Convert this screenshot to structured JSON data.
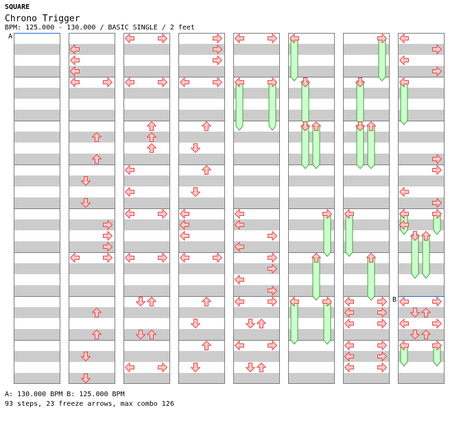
{
  "header": {
    "title": "SQUARE",
    "song": "Chrono Trigger",
    "info": "BPM: 125.000 - 130.000 / BASIC SINGLE / 2 feet"
  },
  "footer": {
    "bpm": "A: 130.000 BPM      B: 125.000 BPM",
    "stats": "93 steps, 23 freeze arrows, max combo 126"
  },
  "bpm_markers": [
    {
      "label": "A",
      "column": 0,
      "beat": 0
    },
    {
      "label": "B",
      "column": 7,
      "beat": 24
    }
  ],
  "chart_data": {
    "type": "step_chart",
    "mode": "BASIC SINGLE",
    "lanes": [
      "left",
      "down",
      "up",
      "right"
    ],
    "columns": 8,
    "measures_per_column": 8,
    "beats_per_measure": 4,
    "notes": [
      [
        1,
        1,
        "left"
      ],
      [
        1,
        2,
        "left"
      ],
      [
        1,
        3,
        "left"
      ],
      [
        1,
        4,
        "left"
      ],
      [
        1,
        4,
        "right"
      ],
      [
        1,
        9,
        "up"
      ],
      [
        1,
        11,
        "up"
      ],
      [
        1,
        13,
        "down"
      ],
      [
        1,
        15,
        "down"
      ],
      [
        1,
        17,
        "right"
      ],
      [
        1,
        18,
        "right"
      ],
      [
        1,
        19,
        "right"
      ],
      [
        1,
        20,
        "left"
      ],
      [
        1,
        20,
        "right"
      ],
      [
        1,
        25,
        "up"
      ],
      [
        1,
        27,
        "up"
      ],
      [
        1,
        29,
        "down"
      ],
      [
        1,
        31,
        "down"
      ],
      [
        2,
        0,
        "left"
      ],
      [
        2,
        0,
        "right"
      ],
      [
        2,
        4,
        "left"
      ],
      [
        2,
        4,
        "right"
      ],
      [
        2,
        8,
        "up"
      ],
      [
        2,
        9,
        "up"
      ],
      [
        2,
        10,
        "up"
      ],
      [
        2,
        12,
        "left"
      ],
      [
        2,
        14,
        "left"
      ],
      [
        2,
        16,
        "left"
      ],
      [
        2,
        16,
        "right"
      ],
      [
        2,
        20,
        "left"
      ],
      [
        2,
        20,
        "right"
      ],
      [
        2,
        24,
        "down"
      ],
      [
        2,
        24,
        "up"
      ],
      [
        2,
        27,
        "down"
      ],
      [
        2,
        27,
        "up"
      ],
      [
        2,
        30,
        "left"
      ],
      [
        2,
        30,
        "right"
      ],
      [
        3,
        0,
        "right"
      ],
      [
        3,
        1,
        "right"
      ],
      [
        3,
        2,
        "right"
      ],
      [
        3,
        4,
        "left"
      ],
      [
        3,
        4,
        "right"
      ],
      [
        3,
        8,
        "up"
      ],
      [
        3,
        10,
        "down"
      ],
      [
        3,
        12,
        "up"
      ],
      [
        3,
        14,
        "down"
      ],
      [
        3,
        16,
        "left"
      ],
      [
        3,
        17,
        "left"
      ],
      [
        3,
        18,
        "left"
      ],
      [
        3,
        20,
        "left"
      ],
      [
        3,
        20,
        "right"
      ],
      [
        3,
        24,
        "up"
      ],
      [
        3,
        26,
        "down"
      ],
      [
        3,
        28,
        "up"
      ],
      [
        3,
        30,
        "down"
      ],
      [
        4,
        0,
        "left"
      ],
      [
        4,
        0,
        "right"
      ],
      [
        4,
        16,
        "left"
      ],
      [
        4,
        17,
        "left"
      ],
      [
        4,
        18,
        "right"
      ],
      [
        4,
        19,
        "left"
      ],
      [
        4,
        20,
        "right"
      ],
      [
        4,
        21,
        "right"
      ],
      [
        4,
        22,
        "left"
      ],
      [
        4,
        23,
        "right"
      ],
      [
        4,
        24,
        "left"
      ],
      [
        4,
        24,
        "right"
      ],
      [
        4,
        26,
        "down"
      ],
      [
        4,
        26,
        "up"
      ],
      [
        4,
        28,
        "left"
      ],
      [
        4,
        28,
        "right"
      ],
      [
        4,
        30,
        "down"
      ],
      [
        4,
        30,
        "up"
      ],
      [
        6,
        24,
        "left"
      ],
      [
        6,
        24,
        "right"
      ],
      [
        6,
        25,
        "left"
      ],
      [
        6,
        25,
        "right"
      ],
      [
        6,
        26,
        "left"
      ],
      [
        6,
        26,
        "right"
      ],
      [
        6,
        28,
        "left"
      ],
      [
        6,
        28,
        "right"
      ],
      [
        6,
        29,
        "left"
      ],
      [
        6,
        29,
        "right"
      ],
      [
        6,
        30,
        "left"
      ],
      [
        6,
        30,
        "right"
      ],
      [
        7,
        0,
        "left"
      ],
      [
        7,
        1,
        "right"
      ],
      [
        7,
        2,
        "left"
      ],
      [
        7,
        3,
        "right"
      ],
      [
        7,
        11,
        "right"
      ],
      [
        7,
        12,
        "right"
      ],
      [
        7,
        14,
        "left"
      ],
      [
        7,
        15,
        "right"
      ],
      [
        7,
        16,
        "left"
      ],
      [
        7,
        17,
        "left"
      ],
      [
        7,
        24,
        "left"
      ],
      [
        7,
        24,
        "right"
      ],
      [
        7,
        25,
        "down"
      ],
      [
        7,
        25,
        "up"
      ],
      [
        7,
        26,
        "left"
      ],
      [
        7,
        26,
        "right"
      ],
      [
        7,
        27,
        "down"
      ],
      [
        7,
        27,
        "up"
      ]
    ],
    "freezes": [
      [
        4,
        4,
        8,
        "left"
      ],
      [
        4,
        4,
        8,
        "right"
      ],
      [
        5,
        0,
        3.5,
        "left"
      ],
      [
        5,
        4,
        7.5,
        "down"
      ],
      [
        5,
        8,
        11.5,
        "down"
      ],
      [
        5,
        8,
        11.5,
        "up"
      ],
      [
        5,
        16,
        19.5,
        "right"
      ],
      [
        5,
        20,
        23.5,
        "up"
      ],
      [
        5,
        24,
        27.5,
        "left"
      ],
      [
        5,
        24,
        27.5,
        "right"
      ],
      [
        6,
        0,
        3.5,
        "right"
      ],
      [
        6,
        4,
        7.5,
        "down"
      ],
      [
        6,
        8,
        11.5,
        "down"
      ],
      [
        6,
        8,
        11.5,
        "up"
      ],
      [
        6,
        16,
        19.5,
        "left"
      ],
      [
        6,
        20,
        23.5,
        "up"
      ],
      [
        7,
        4,
        7.5,
        "left"
      ],
      [
        7,
        16,
        17.5,
        "left"
      ],
      [
        7,
        16,
        17.5,
        "right"
      ],
      [
        7,
        18,
        21.5,
        "down"
      ],
      [
        7,
        18,
        21.5,
        "up"
      ],
      [
        7,
        28,
        29.5,
        "left"
      ],
      [
        7,
        28,
        29.5,
        "right"
      ]
    ]
  },
  "colors": {
    "arrow_fill": "#ffc8c8",
    "arrow_stroke": "#e04848",
    "freeze_fill": "#ccffcc",
    "freeze_stroke": "#40a040",
    "stripe": "#cccccc",
    "bpm_line": "#2266dd"
  }
}
